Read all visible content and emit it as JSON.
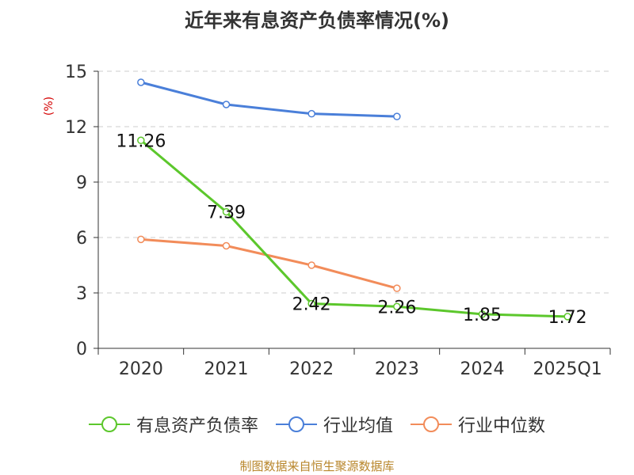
{
  "chart_data": {
    "type": "line",
    "title": "近年来有息资产负债率情况(%)",
    "ylabel": "(%)",
    "xlabel": "",
    "categories": [
      "2020",
      "2021",
      "2022",
      "2023",
      "2024",
      "2025Q1"
    ],
    "ylim": [
      0,
      15
    ],
    "yticks": [
      0,
      3,
      6,
      9,
      12,
      15
    ],
    "grid": true,
    "legend_position": "bottom",
    "series": [
      {
        "name": "有息资产负债率",
        "color": "#5cc72c",
        "values": [
          11.26,
          7.39,
          2.42,
          2.26,
          1.85,
          1.72
        ],
        "labels": [
          "11.26",
          "7.39",
          "2.42",
          "2.26",
          "1.85",
          "1.72"
        ]
      },
      {
        "name": "行业均值",
        "color": "#4a7fd9",
        "values": [
          14.4,
          13.2,
          12.7,
          12.55,
          null,
          null
        ]
      },
      {
        "name": "行业中位数",
        "color": "#f28c5a",
        "values": [
          5.9,
          5.55,
          4.5,
          3.25,
          null,
          null
        ]
      }
    ]
  },
  "footer": "制图数据来自恒生聚源数据库"
}
